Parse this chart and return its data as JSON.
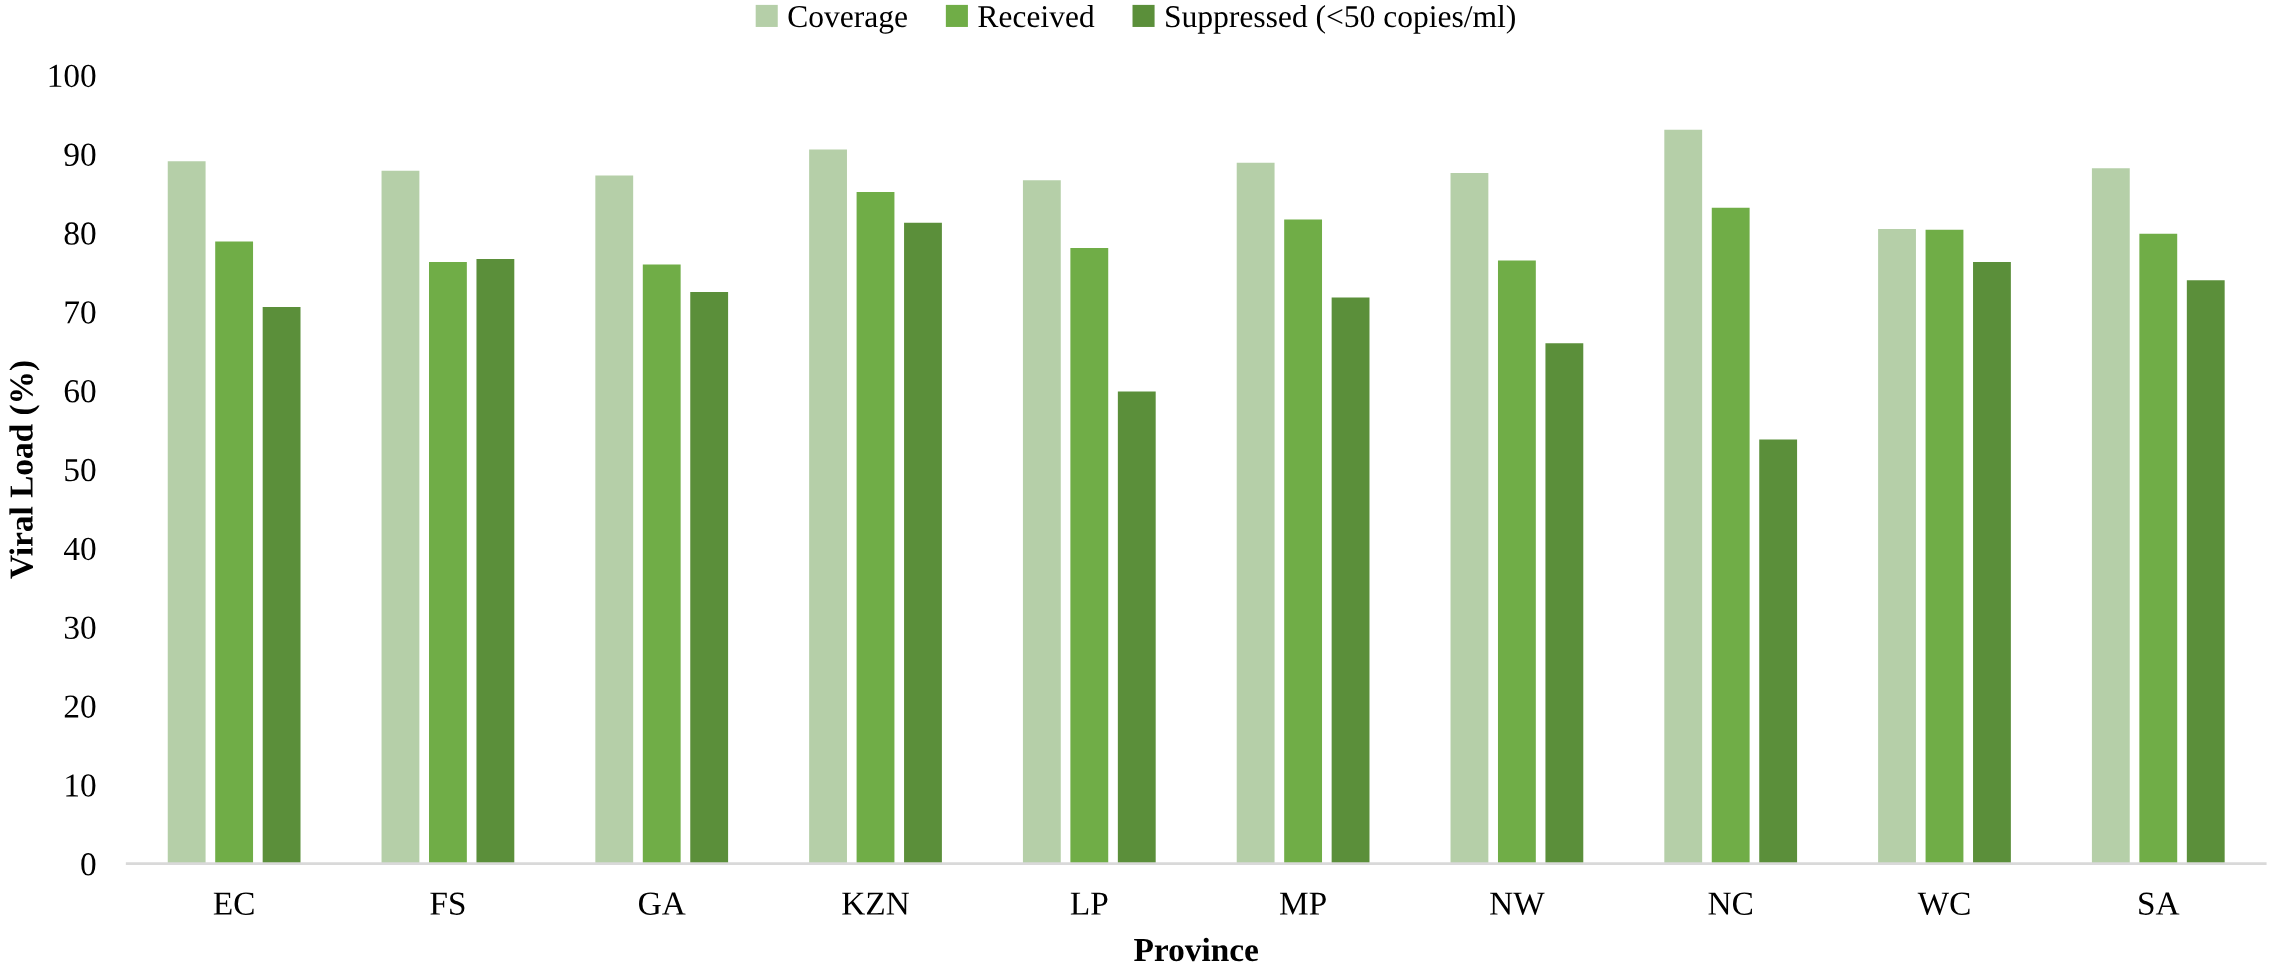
{
  "chart_data": {
    "type": "bar",
    "xlabel": "Province",
    "ylabel": "Viral Load (%)",
    "categories": [
      "EC",
      "FS",
      "GA",
      "KZN",
      "LP",
      "MP",
      "NW",
      "NC",
      "WC",
      "SA"
    ],
    "series": [
      {
        "name": "Coverage",
        "color": "#b5cfa8",
        "values": [
          89.1,
          87.9,
          87.3,
          90.6,
          86.7,
          88.9,
          87.6,
          93.1,
          80.5,
          88.2
        ]
      },
      {
        "name": "Received",
        "color": "#70ad47",
        "values": [
          78.9,
          76.3,
          76.0,
          85.2,
          78.1,
          81.7,
          76.5,
          83.2,
          80.4,
          79.9
        ]
      },
      {
        "name": "Suppressed (<50 copies/ml)",
        "color": "#5b8f3a",
        "values": [
          70.6,
          76.7,
          72.5,
          81.3,
          59.9,
          71.8,
          66.0,
          53.8,
          76.3,
          74.0
        ]
      }
    ],
    "ylim": [
      0,
      100
    ],
    "yticks": [
      0,
      10,
      20,
      30,
      40,
      50,
      60,
      70,
      80,
      90,
      100
    ],
    "grid": false,
    "legend": "top"
  }
}
